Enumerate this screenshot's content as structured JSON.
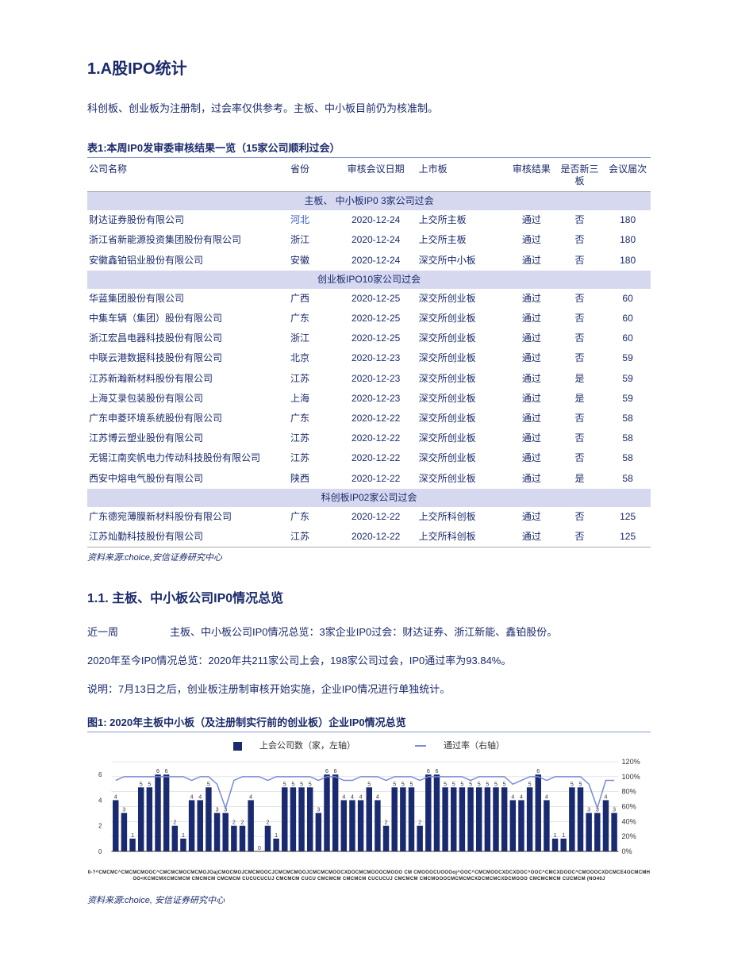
{
  "heading": "1.A股IPO统计",
  "intro": "科创板、创业板为注册制，过会率仅供参考。主板、中小板目前仍为核准制。",
  "table1": {
    "title": "表1:本周IP0发审委审核结果一览（15家公司顺利过会）",
    "columns": [
      "公司名称",
      "省份",
      "审核会议日期",
      "上市板",
      "审核结果",
      "是否新三板",
      "会议届次"
    ],
    "section1_label": "主板、 中小板IP0 3家公司过会",
    "section2_label": "创业板IPO10家公司过会",
    "section3_label": "科创板IP02家公司过会",
    "section1_rows": [
      [
        "财达证券股份有限公司",
        "河北",
        "2020-12-24",
        "上交所主板",
        "通过",
        "否",
        "180"
      ],
      [
        "浙江省新能源投资集团股份有限公司",
        "浙江",
        "2020-12-24",
        "上交所主板",
        "通过",
        "否",
        "180"
      ],
      [
        "安徽鑫铂铝业股份有限公司",
        "安徽",
        "2020-12-24",
        "深交所中小板",
        "通过",
        "否",
        "180"
      ]
    ],
    "section2_rows": [
      [
        "华蓝集团股份有限公司",
        "广西",
        "2020-12-25",
        "深交所创业板",
        "通过",
        "否",
        "60"
      ],
      [
        "中集车辆（集团）股份有限公司",
        "广东",
        "2020-12-25",
        "深交所创业板",
        "通过",
        "否",
        "60"
      ],
      [
        "浙江宏昌电器科技股份有限公司",
        "浙江",
        "2020-12-25",
        "深交所创业板",
        "通过",
        "否",
        "60"
      ],
      [
        "中联云港数据科技股份有限公司",
        "北京",
        "2020-12-23",
        "深交所创业板",
        "通过",
        "否",
        "59"
      ],
      [
        "江苏新瀚新材料股份有限公司",
        "江苏",
        "2020-12-23",
        "深交所创业板",
        "通过",
        "是",
        "59"
      ],
      [
        "上海艾录包装股份有限公司",
        "上海",
        "2020-12-23",
        "深交所创业板",
        "通过",
        "是",
        "59"
      ],
      [
        "广东申菱环境系统股份有限公司",
        "广东",
        "2020-12-22",
        "深交所创业板",
        "通过",
        "否",
        "58"
      ],
      [
        "江苏博云塑业股份有限公司",
        "江苏",
        "2020-12-22",
        "深交所创业板",
        "通过",
        "否",
        "58"
      ],
      [
        "无锡江南奕帆电力传动科技股份有限公司",
        "江苏",
        "2020-12-22",
        "深交所创业板",
        "通过",
        "否",
        "58"
      ],
      [
        "西安中熔电气股份有限公司",
        "陕西",
        "2020-12-22",
        "深交所创业板",
        "通过",
        "是",
        "58"
      ]
    ],
    "section3_rows": [
      [
        "广东德宛薄膜新材料股份有限公司",
        "广东",
        "2020-12-22",
        "上交所科创板",
        "通过",
        "否",
        "125"
      ],
      [
        "江苏灿勤科技股份有限公司",
        "江苏",
        "2020-12-22",
        "上交所科创板",
        "通过",
        "否",
        "125"
      ]
    ],
    "source": "资料来源:choice,安信证券研究中心"
  },
  "subheading": "1.1. 主板、中小板公司IP0情况总览",
  "para1": "近一周     主板、中小板公司IP0情况总览：3家企业IP0过会：财达证券、浙江新能、鑫铂股份。",
  "para2": "2020年至今IP0情况总览：2020年共211家公司上会，198家公司过会，IP0通过率为93.84%。",
  "para3": "说明：7月13日之后，创业板注册制审核开始实施，企业IP0情况进行单独统计。",
  "chart": {
    "title": "图1: 2020年主板中小板（及注册制实行前的创业板）企业IP0情况总览",
    "legend_bar": "上会公司数（家，左轴）",
    "legend_line": "通过率（右轴）",
    "type": "bar+line",
    "bars": [
      4,
      3,
      1,
      5,
      5,
      6,
      6,
      2,
      1,
      4,
      4,
      5,
      3,
      3,
      2,
      2,
      4,
      0,
      2,
      1,
      5,
      5,
      5,
      5,
      3,
      6,
      6,
      4,
      4,
      4,
      5,
      4,
      2,
      5,
      5,
      5,
      2,
      6,
      6,
      5,
      5,
      5,
      5,
      5,
      5,
      5,
      5,
      4,
      4,
      5,
      6,
      4,
      1,
      1,
      5,
      5,
      3,
      3,
      4,
      3
    ],
    "line": [
      95,
      100,
      100,
      100,
      100,
      100,
      100,
      100,
      100,
      95,
      100,
      100,
      90,
      58,
      95,
      100,
      100,
      100,
      95,
      100,
      100,
      100,
      100,
      100,
      95,
      100,
      100,
      95,
      95,
      100,
      100,
      100,
      95,
      100,
      100,
      100,
      95,
      100,
      100,
      100,
      100,
      100,
      95,
      100,
      100,
      100,
      100,
      90,
      95,
      100,
      100,
      95,
      100,
      100,
      100,
      100,
      90,
      58,
      95,
      95
    ],
    "y_left_max": 7,
    "y_left_ticks": [
      0,
      2,
      4,
      6
    ],
    "y_right_ticks": [
      "0%",
      "20%",
      "40%",
      "60%",
      "80%",
      "100%",
      "120%"
    ],
    "y_right_max": 120,
    "bar_color": "#1a2a70",
    "line_color": "#7a8bd8",
    "grid_color": "#cccccc",
    "background_color": "#ffffff",
    "label_fontsize": 8,
    "x_garble": "0-?^CMCMC^CMCMCMOOC^CMCMCMOCMCMOJOajCMOCMOJCMCMOOCJCMCMCMOOJCMCMCMOOCXDOCMCMOOOCMOOO CM CMOOOCUOOOoj^OOC^CMCMOOCXDCXDOC^OOC^CMCXDOOC^CMOOOCXDCMCE4OCMCMHOO<KCMCMXCMCMCM CMCMCM CMCMCM CUCUCUCUJ CMCMCM CUCU CMCMCM CMCMCM CUCUCUJ CMCMCM CMCMOOOCMCMCMCXDCMCMCXDCMOOO CMCMCMCM CUCMCM (NO40J"
  },
  "source2": "资料来源:choice, 安信证券研究中心"
}
